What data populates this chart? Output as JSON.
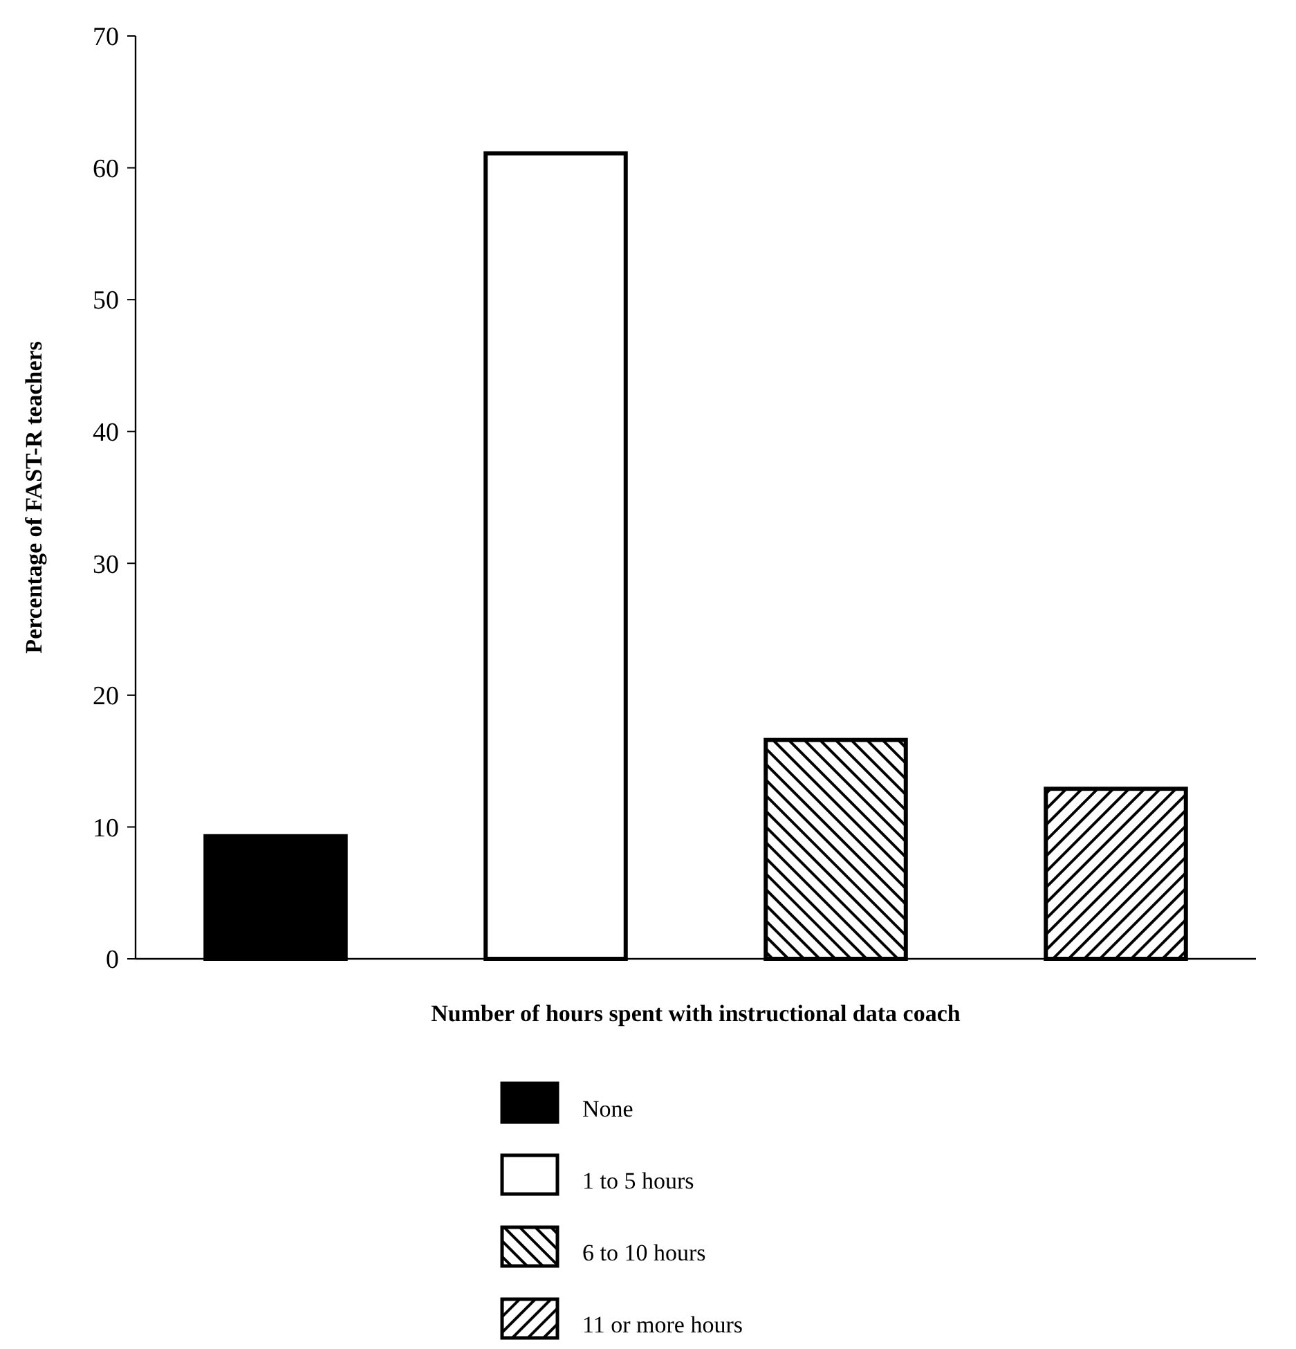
{
  "chart_data": {
    "type": "bar",
    "xlabel": "Number of hours spent with instructional data coach",
    "ylabel": "Percentage of FAST-R teachers",
    "categories": [
      null,
      null,
      null,
      null
    ],
    "series": [
      {
        "name": "None",
        "color": "#000000",
        "values": [
          9.3,
          null,
          null,
          null
        ]
      },
      {
        "name": "1 to 5 hours",
        "color": "#ffffff",
        "values": [
          null,
          61.1,
          null,
          null
        ]
      },
      {
        "name": "6 to 10 hours",
        "color": "#000000",
        "values": [
          null,
          null,
          16.6,
          null
        ]
      },
      {
        "name": "11 or more hours",
        "color": "#000000",
        "values": [
          null,
          null,
          null,
          12.9
        ]
      }
    ],
    "ylim": [
      0,
      70
    ],
    "yticks": [
      0,
      10,
      20,
      30,
      40,
      50,
      60,
      70
    ],
    "legend": "bottom",
    "grid": false
  }
}
